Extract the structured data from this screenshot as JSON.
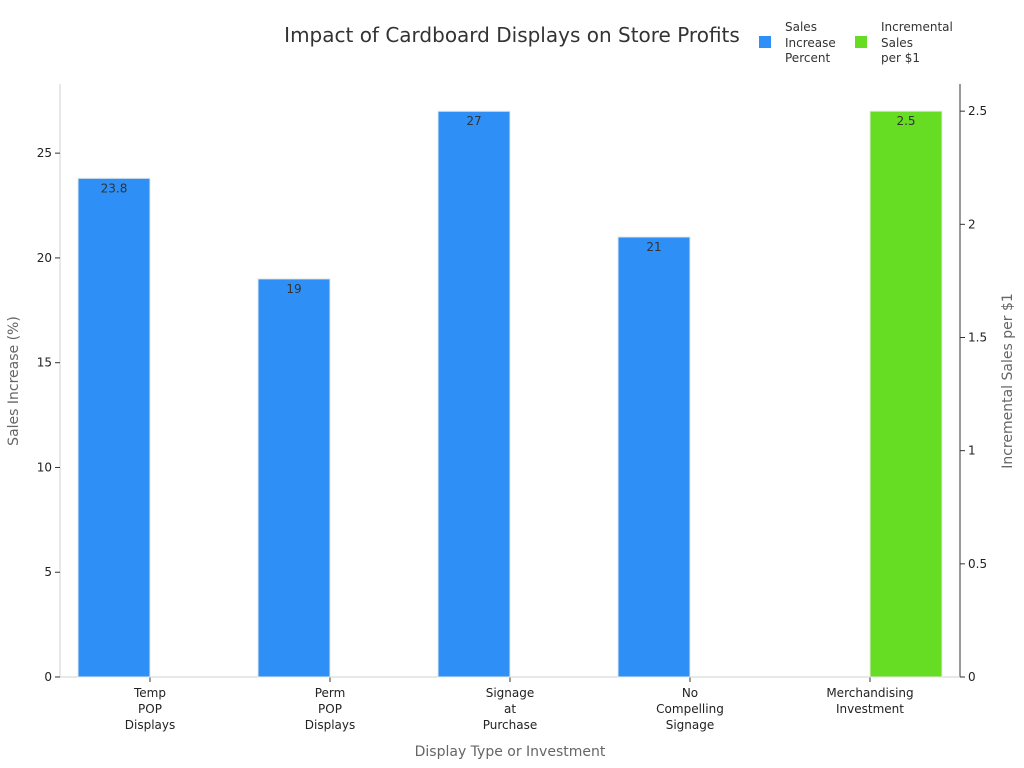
{
  "chart_data": {
    "type": "bar",
    "title": "Impact of Cardboard Displays on Store Profits",
    "xlabel": "Display Type or Investment",
    "ylabel": "Sales Increase (%)",
    "y2label": "Incremental Sales per $1",
    "ylim": [
      0,
      28.3
    ],
    "y2lim": [
      0,
      2.62
    ],
    "yticks": [
      "0",
      "5",
      "10",
      "15",
      "20",
      "25"
    ],
    "y2ticks": [
      "0",
      "0.5",
      "1",
      "1.5",
      "2",
      "2.5"
    ],
    "categories": [
      [
        "Temp",
        "POP",
        "Displays"
      ],
      [
        "Perm",
        "POP",
        "Displays"
      ],
      [
        "Signage",
        "at",
        "Purchase"
      ],
      [
        "No",
        "Compelling",
        "Signage"
      ],
      [
        "Merchandising",
        "Investment"
      ]
    ],
    "series": [
      {
        "name": [
          "Sales",
          "Increase",
          "Percent"
        ],
        "axis": "left",
        "color": "#2e90f7",
        "values": [
          23.8,
          19,
          27,
          21,
          null
        ],
        "labels": [
          "23.8",
          "19",
          "27",
          "21",
          ""
        ]
      },
      {
        "name": [
          "Incremental",
          "Sales",
          "per $1"
        ],
        "axis": "right",
        "color": "#66dd22",
        "values": [
          null,
          null,
          null,
          null,
          2.5
        ],
        "labels": [
          "",
          "",
          "",
          "",
          "2.5"
        ]
      }
    ],
    "legend": "top-right",
    "grid": false
  }
}
